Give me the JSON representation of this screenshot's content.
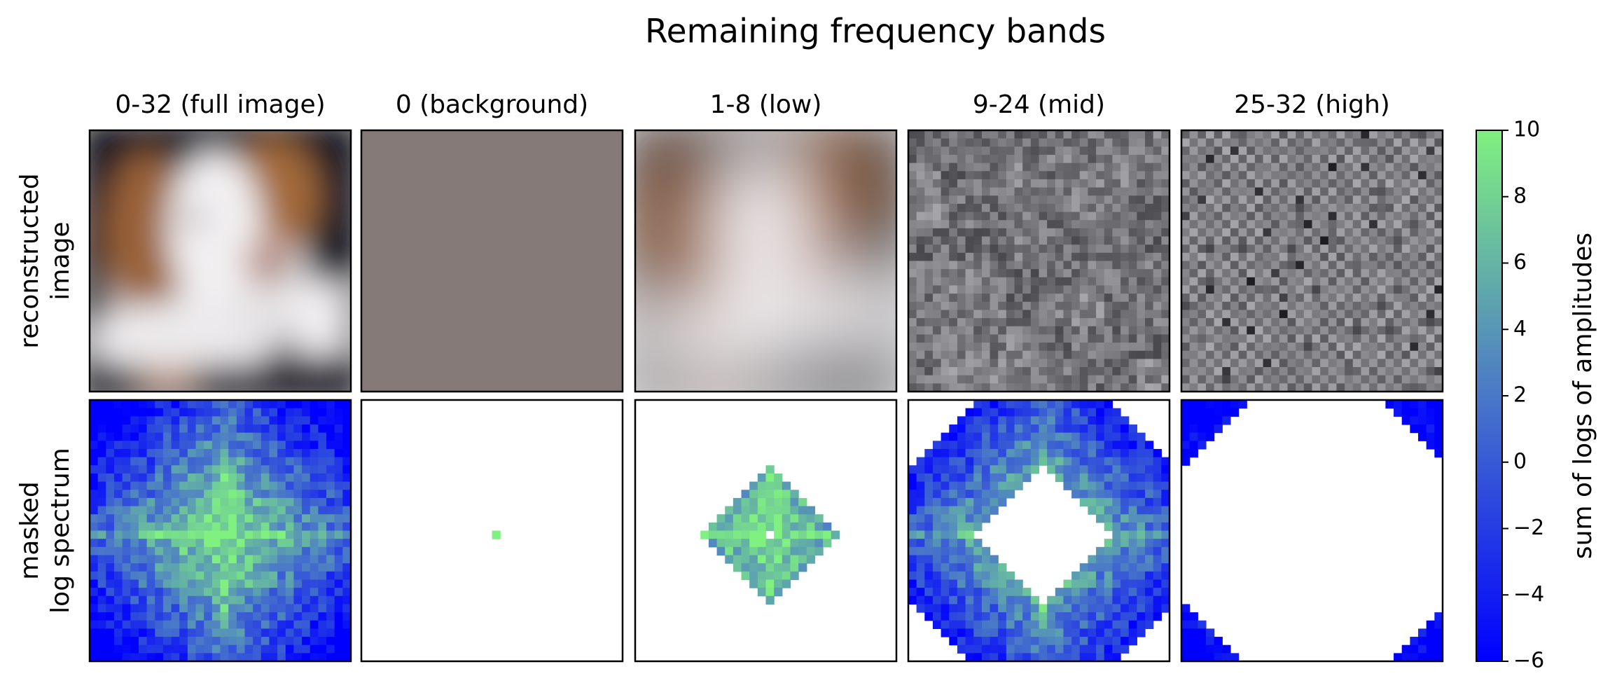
{
  "chart_data": {
    "type": "image_grid",
    "title": "Remaining frequency bands",
    "columns": [
      "0-32 (full image)",
      "0 (background)",
      "1-8 (low)",
      "9-24 (mid)",
      "25-32 (high)"
    ],
    "rows": [
      [
        "reconstructed",
        "image"
      ],
      [
        "masked",
        "log spectrum"
      ]
    ],
    "colorbar": {
      "label": "sum of logs of amplitudes",
      "lim": [
        -6,
        10
      ],
      "ticks": [
        {
          "value": -6,
          "label": "−6"
        },
        {
          "value": -4,
          "label": "−4"
        },
        {
          "value": -2,
          "label": "−2"
        },
        0,
        2,
        4,
        6,
        8,
        10
      ],
      "colors": [
        "#0000ff",
        "#4a78c8",
        "#80f080"
      ]
    }
  }
}
